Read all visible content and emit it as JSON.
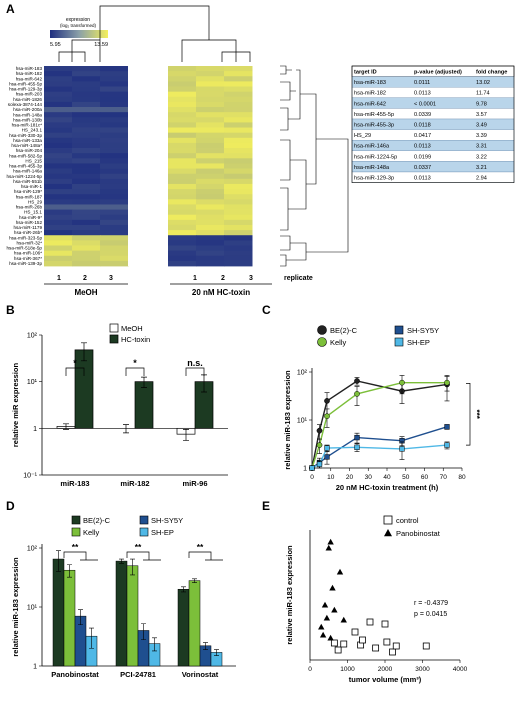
{
  "panels": {
    "A": "A",
    "B": "B",
    "C": "C",
    "D": "D",
    "E": "E"
  },
  "colors": {
    "heat_low": "#1f2f80",
    "heat_high": "#f3ef5c",
    "dark_green": "#1c3a22",
    "light_green": "#7cbf3a",
    "dark_blue": "#1f4f8f",
    "light_blue": "#4fb8e6",
    "table_blue": "#b9d5ea"
  },
  "heatmap": {
    "legend_title": "expression",
    "legend_subtitle": "(log₂ transformed)",
    "legend_min": "5.95",
    "legend_max": "13.59",
    "genes": [
      "hsa-miR-183",
      "hsa-miR-182",
      "hsa-miR-642",
      "hsa-miR-455-5p",
      "hsa-miR-129-3p",
      "hsa-miR-203",
      "hsa-miR-1826",
      "solexa-3874-144",
      "hsa-miR-200a",
      "hsa-miR-148a",
      "hsa-miR-130b",
      "hsa-miR-181c*",
      "HS_243.1",
      "hsa-miR-330-3p",
      "hsa-miR-133a",
      "hsa-miR-148a*",
      "hsa-miR-204",
      "hsa-miR-582-5p",
      "HS_215",
      "hsa-miR-455-3p",
      "hsa-miR-146a",
      "hsa-miR-1224-5p",
      "hsa-miR-551b",
      "hsa-miR-1",
      "hsa-miR-129*",
      "hsa-miR-187",
      "HS_29",
      "hsa-miR-26b",
      "HS_15.1",
      "hsa-miR-9*",
      "hsa-miR-152",
      "hsa-miR-1179",
      "hsa-miR-26b*",
      "hsa-miR-323-5p",
      "hsa-miR-32*",
      "hsa-miR-518e-5p",
      "hsa-miR-106*",
      "hsa-miR-367*",
      "hsa-miR-139-3p"
    ],
    "n_up": 33,
    "group_left": "MeOH",
    "group_right": "20 nM HC-toxin",
    "replicates": [
      "1",
      "2",
      "3",
      "1",
      "2",
      "3"
    ],
    "replicate_label": "replicate"
  },
  "table": {
    "headers": [
      "target ID",
      "p-value (adjusted)",
      "fold change"
    ],
    "rows": [
      [
        "hsa-miR-183",
        "0.0111",
        "13.02"
      ],
      [
        "hsa-miR-182",
        "0.0113",
        "11.74"
      ],
      [
        "hsa-miR-642",
        "< 0.0001",
        "9.78"
      ],
      [
        "hsa-miR-455-5p",
        "0.0339",
        "3.57"
      ],
      [
        "hsa-miR-455-3p",
        "0.0118",
        "3.49"
      ],
      [
        "HS_29",
        "0.0417",
        "3.39"
      ],
      [
        "hsa-miR-146a",
        "0.0113",
        "3.31"
      ],
      [
        "hsa-miR-1224-5p",
        "0.0199",
        "3.22"
      ],
      [
        "hsa-miR-148a",
        "0.0337",
        "3.21"
      ],
      [
        "hsa-miR-129-3p",
        "0.0113",
        "2.94"
      ]
    ]
  },
  "chart_data": [
    {
      "panel": "B",
      "type": "bar",
      "scale": "log",
      "categories": [
        "miR-183",
        "miR-182",
        "miR-96"
      ],
      "series": [
        {
          "name": "MeOH",
          "values": [
            1.1,
            1.0,
            0.75
          ],
          "err": [
            0.15,
            0.2,
            0.2
          ]
        },
        {
          "name": "HC-toxin",
          "values": [
            48,
            10,
            10
          ],
          "err": [
            20,
            2.5,
            4
          ]
        }
      ],
      "ylabel": "relative miR expression",
      "ylim": [
        0.1,
        100
      ],
      "yticks": [
        "10⁻¹",
        "1",
        "10¹",
        "10²"
      ],
      "significance": [
        "*",
        "*",
        "n.s."
      ],
      "legend": "top"
    },
    {
      "panel": "C",
      "type": "line",
      "scale": "log",
      "x": [
        0,
        4,
        8,
        24,
        48,
        72
      ],
      "series": [
        {
          "name": "BE(2)-C",
          "values": [
            1,
            6,
            25,
            65,
            40,
            55
          ],
          "err": [
            0,
            2,
            12,
            12,
            18,
            30
          ]
        },
        {
          "name": "Kelly",
          "values": [
            1,
            3,
            12,
            35,
            60,
            60
          ],
          "err": [
            0,
            1,
            5,
            15,
            25,
            20
          ]
        },
        {
          "name": "SH-SY5Y",
          "values": [
            1,
            1.3,
            1.7,
            4.3,
            3.7,
            7.2
          ],
          "err": [
            0,
            0.3,
            0.5,
            1,
            0.8,
            0.8
          ]
        },
        {
          "name": "SH-EP",
          "values": [
            1,
            1.2,
            2.6,
            2.7,
            2.5,
            3.0
          ],
          "err": [
            0,
            0.2,
            0.4,
            0.5,
            1.0,
            0.5
          ]
        }
      ],
      "xlabel": "20 nM HC-toxin treatment (h)",
      "ylabel": "relative miR-183 expression",
      "xlim": [
        0,
        80
      ],
      "xticks": [
        "0",
        "10",
        "20",
        "30",
        "40",
        "50",
        "60",
        "70",
        "80"
      ],
      "ylim": [
        1,
        100
      ],
      "yticks": [
        "1",
        "10¹",
        "10²"
      ],
      "significance": "***",
      "legend": "top"
    },
    {
      "panel": "D",
      "type": "bar",
      "scale": "log",
      "categories": [
        "Panobinostat",
        "PCI-24781",
        "Vorinostat"
      ],
      "series": [
        {
          "name": "BE(2)-C",
          "values": [
            65,
            60,
            20
          ],
          "err": [
            25,
            5,
            2
          ]
        },
        {
          "name": "Kelly",
          "values": [
            42,
            50,
            28
          ],
          "err": [
            10,
            15,
            2
          ]
        },
        {
          "name": "SH-SY5Y",
          "values": [
            7,
            4,
            2.2
          ],
          "err": [
            2,
            1.2,
            0.3
          ]
        },
        {
          "name": "SH-EP",
          "values": [
            3.2,
            2.4,
            1.7
          ],
          "err": [
            1.2,
            0.6,
            0.2
          ]
        }
      ],
      "ylabel": "relative miR-183 expression",
      "ylim": [
        1,
        100
      ],
      "yticks": [
        "1",
        "10¹",
        "10²"
      ],
      "significance": [
        "**",
        "**",
        "**"
      ],
      "legend": "top"
    },
    {
      "panel": "E",
      "type": "scatter",
      "series": [
        {
          "name": "control",
          "marker": "square",
          "x": [
            650,
            750,
            900,
            1200,
            1350,
            1400,
            1600,
            1750,
            2000,
            2050,
            2200,
            2300,
            3100
          ],
          "y": [
            0.17,
            0.1,
            0.16,
            0.28,
            0.15,
            0.2,
            0.38,
            0.12,
            0.36,
            0.18,
            0.08,
            0.14,
            0.14
          ]
        },
        {
          "name": "Panobinostat",
          "marker": "triangle",
          "x": [
            300,
            350,
            400,
            450,
            500,
            550,
            550,
            600,
            650,
            800,
            900
          ],
          "y": [
            0.33,
            0.25,
            0.55,
            0.42,
            1.12,
            1.18,
            0.22,
            0.72,
            0.5,
            0.88,
            0.4
          ]
        }
      ],
      "xlabel": "tumor volume (mm³)",
      "ylabel": "relative miR-183 expression",
      "xlim": [
        0,
        4000
      ],
      "xticks": [
        "0",
        "1000",
        "2000",
        "3000",
        "4000"
      ],
      "ylim": [
        0,
        1.3
      ],
      "stats": [
        "r = -0.4379",
        "p = 0.0415"
      ],
      "legend": "top-right"
    }
  ]
}
